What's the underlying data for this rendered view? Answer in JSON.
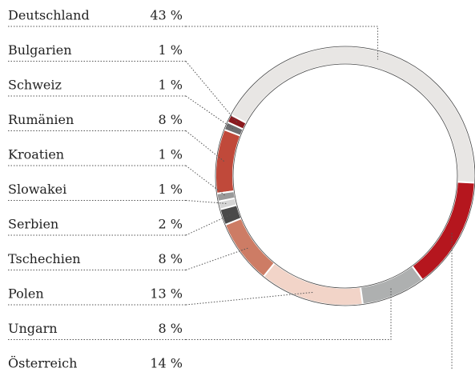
{
  "chart_data": {
    "type": "donut",
    "categories": [
      "Deutschland",
      "Bulgarien",
      "Schweiz",
      "Rumänien",
      "Kroatien",
      "Slowakei",
      "Serbien",
      "Tschechien",
      "Polen",
      "Ungarn",
      "Österreich"
    ],
    "values": [
      43,
      1,
      1,
      8,
      1,
      1,
      2,
      8,
      13,
      8,
      14
    ],
    "value_labels": [
      "43 %",
      "1 %",
      "1 %",
      "8 %",
      "1 %",
      "1 %",
      "2 %",
      "8 %",
      "13 %",
      "8 %",
      "14 %"
    ],
    "colors": [
      "#e8e6e4",
      "#8b1a1f",
      "#6e6e70",
      "#c0493a",
      "#9a9a9a",
      "#d6d6d6",
      "#4a4a4a",
      "#cd7c65",
      "#f2d4c8",
      "#aeb0b0",
      "#b5161e"
    ]
  }
}
